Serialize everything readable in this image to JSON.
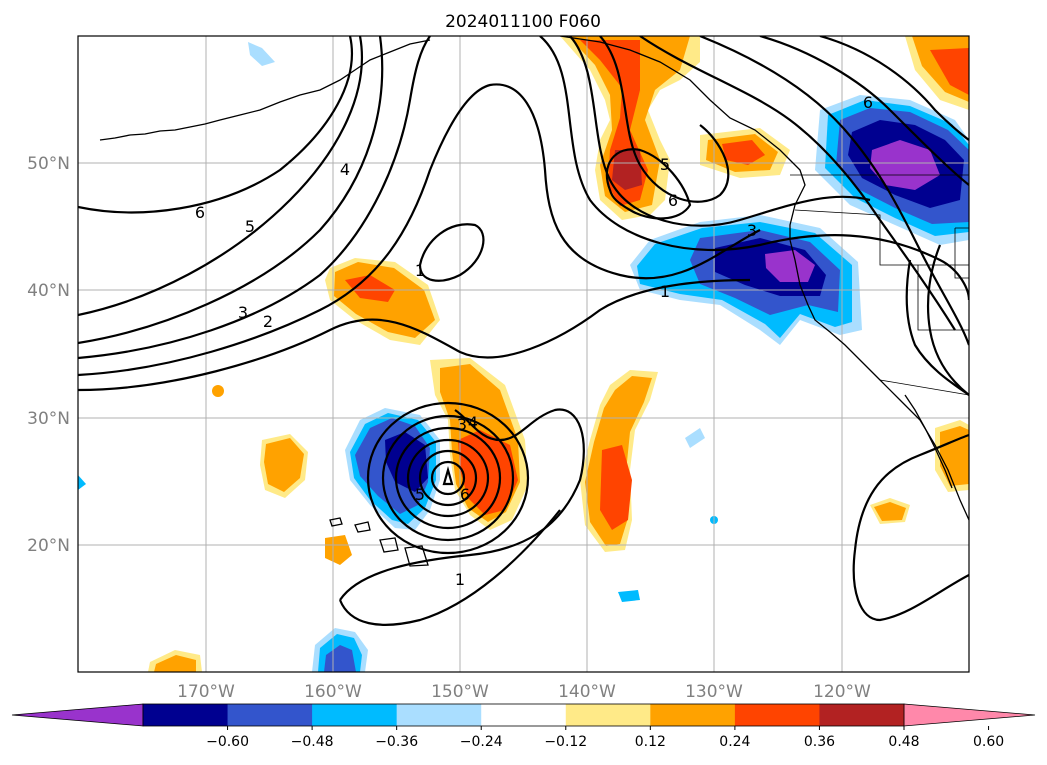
{
  "title": "2024011100 F060",
  "longitude_ticks": [
    "170°W",
    "160°W",
    "150°W",
    "140°W",
    "130°W",
    "120°W"
  ],
  "latitude_ticks": [
    "50°N",
    "40°N",
    "30°N",
    "20°N"
  ],
  "colorbar": {
    "tick_labels": [
      "−0.60",
      "−0.48",
      "−0.36",
      "−0.24",
      "−0.12",
      "0.12",
      "0.24",
      "0.36",
      "0.48",
      "0.60"
    ],
    "colors": [
      "#9933cc",
      "#000090",
      "#3355cc",
      "#00bbff",
      "#aadeff",
      "#ffffff",
      "#ffea88",
      "#ffa200",
      "#ff4400",
      "#b22222",
      "#ff88aa"
    ],
    "extend": "both"
  },
  "contour_labels": {
    "c6_west": "6",
    "c5_west": "5",
    "c4": "4",
    "c3": "3",
    "c2": "2",
    "c1_ne": "1",
    "c1_pac": "1",
    "c1_sw": "1",
    "c5_ne": "5",
    "c6_ne": "6",
    "c6_far": "6",
    "c3_ne": "3",
    "c3_low": "3",
    "c6_low": "6",
    "c5_low": "5",
    "c4_low": "4"
  },
  "map": {
    "lon_range": [
      "180°W",
      "110°W"
    ],
    "lat_range": [
      "10°N",
      "60°N"
    ],
    "features": [
      "coastlines",
      "country borders",
      "state borders",
      "gridlines"
    ]
  }
}
